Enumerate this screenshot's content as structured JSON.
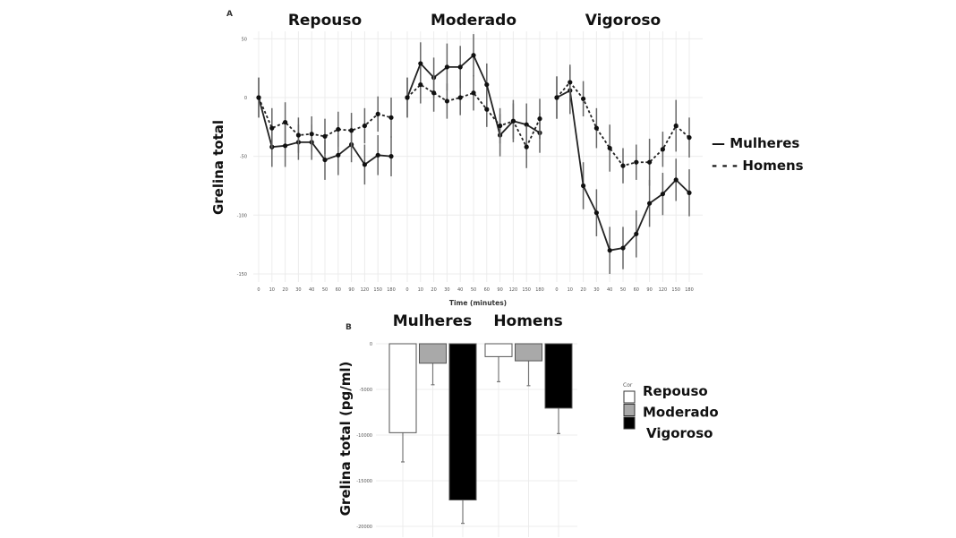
{
  "chart_data": [
    {
      "panel": "A",
      "type": "line",
      "ylabel": "Grelina total",
      "xlabel": "Time (minutes)",
      "x": [
        "0",
        "10",
        "20",
        "30",
        "40",
        "50",
        "60",
        "90",
        "120",
        "150",
        "180"
      ],
      "yticks": [
        50,
        0,
        -50,
        -100,
        -150
      ],
      "ylim": [
        -160,
        60
      ],
      "grid": true,
      "legend_placement": "right",
      "legend": [
        "— Mulheres",
        "- - - Homens"
      ],
      "facets": [
        {
          "title": "Repouso",
          "series": [
            {
              "name": "Mulheres",
              "style": "solid",
              "values": [
                0,
                -42,
                -41,
                -38,
                -38,
                -53,
                -49,
                -40,
                -57,
                -49,
                -50
              ],
              "error": [
                17,
                17,
                18,
                15,
                15,
                17,
                17,
                15,
                17,
                17,
                17
              ]
            },
            {
              "name": "Homens",
              "style": "dashed",
              "values": [
                0,
                -26,
                -21,
                -32,
                -31,
                -33,
                -27,
                -28,
                -24,
                -14,
                -17
              ],
              "error": [
                17,
                17,
                17,
                15,
                15,
                15,
                15,
                15,
                15,
                15,
                17
              ]
            }
          ]
        },
        {
          "title": "Moderado",
          "series": [
            {
              "name": "Mulheres",
              "style": "solid",
              "values": [
                0,
                29,
                17,
                26,
                26,
                36,
                11,
                -32,
                -20,
                -23,
                -30
              ],
              "error": [
                17,
                18,
                17,
                20,
                18,
                18,
                18,
                18,
                18,
                18,
                17
              ]
            },
            {
              "name": "Homens",
              "style": "dashed",
              "values": [
                0,
                11,
                4,
                -3,
                0,
                4,
                -10,
                -24,
                -20,
                -42,
                -18
              ],
              "error": [
                17,
                16,
                16,
                15,
                15,
                15,
                15,
                15,
                15,
                18,
                17
              ]
            }
          ]
        },
        {
          "title": "Vigoroso",
          "series": [
            {
              "name": "Mulheres",
              "style": "solid",
              "values": [
                0,
                6,
                -75,
                -98,
                -130,
                -128,
                -116,
                -90,
                -82,
                -70,
                -81
              ],
              "error": [
                18,
                20,
                20,
                20,
                20,
                18,
                20,
                20,
                18,
                18,
                20
              ]
            },
            {
              "name": "Homens",
              "style": "dashed",
              "values": [
                0,
                13,
                -1,
                -26,
                -43,
                -58,
                -55,
                -55,
                -44,
                -24,
                -34
              ],
              "error": [
                18,
                15,
                15,
                17,
                20,
                15,
                15,
                20,
                15,
                22,
                17
              ]
            }
          ]
        }
      ]
    },
    {
      "panel": "B",
      "type": "bar",
      "ylabel": "Grelina total (pg/ml)",
      "yticks": [
        0,
        -5000,
        -10000,
        -15000,
        -20000
      ],
      "ylim": [
        -20500,
        0
      ],
      "grid": true,
      "legend_title": "Cor",
      "legend_placement": "right",
      "categories": [
        "Repouso",
        "Moderado",
        "Vigoroso"
      ],
      "colors": {
        "Repouso": "#ffffff",
        "Moderado": "#a9a9a9",
        "Vigoroso": "#000000"
      },
      "facets": [
        {
          "title": "Mulheres",
          "values": [
            -9740,
            -2130,
            -17110
          ],
          "error": [
            3200,
            2360,
            2560
          ]
        },
        {
          "title": "Homens",
          "values": [
            -1410,
            -1870,
            -7050
          ],
          "error": [
            2750,
            2720,
            2790
          ]
        }
      ]
    }
  ]
}
